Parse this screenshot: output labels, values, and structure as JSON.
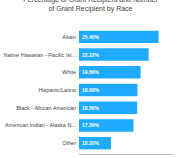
{
  "chart_data": {
    "type": "bar",
    "orientation": "horizontal",
    "title": "Percentage of Grant Recipient and Number\nof Grant Recipient by Race",
    "categories": [
      "Asian",
      "Native Hawaiian - Pacific Isl...",
      "White",
      "Hispanic/Latino",
      "Black - African American",
      "American Indian - Alaska N...",
      "Other"
    ],
    "values": [
      25.4,
      22.22,
      19.66,
      18.66,
      18.56,
      17.39,
      10.2
    ],
    "value_labels": [
      "25.40%",
      "22.22%",
      "19.66%",
      "18.66%",
      "18.56%",
      "17.39%",
      "10.20%"
    ],
    "color": "#1DAAFF",
    "xlim": [
      0,
      30
    ],
    "tick_labels": "y",
    "data_labels": true,
    "grid": false
  }
}
